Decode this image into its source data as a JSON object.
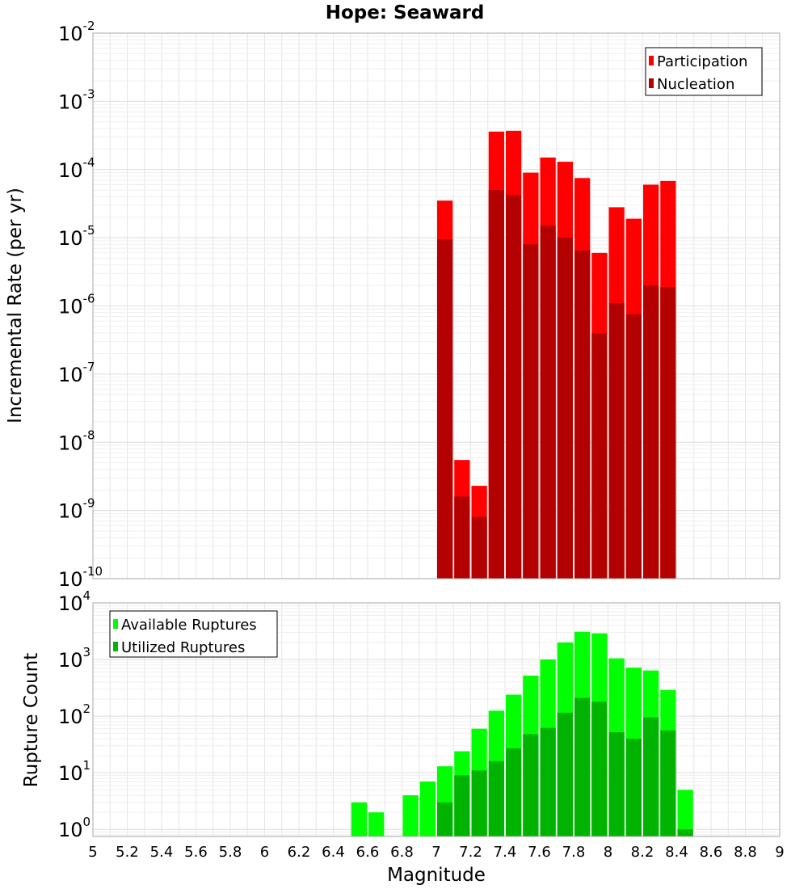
{
  "chart_data": [
    {
      "type": "bar",
      "title": "Hope: Seaward",
      "xlabel": "",
      "ylabel": "Incremental Rate (per yr)",
      "yscale": "log",
      "ylim": [
        1e-10,
        0.01
      ],
      "xlim": [
        5,
        9
      ],
      "y_ticks": [
        "10^-10",
        "10^-9",
        "10^-8",
        "10^-7",
        "10^-6",
        "10^-5",
        "10^-4",
        "10^-3",
        "10^-2"
      ],
      "grid": true,
      "legend_position": "top-right",
      "x": [
        7.05,
        7.15,
        7.25,
        7.35,
        7.45,
        7.55,
        7.65,
        7.75,
        7.85,
        7.95,
        8.05,
        8.15,
        8.25,
        8.35
      ],
      "series": [
        {
          "name": "Participation",
          "color": "#ff0000",
          "values": [
            3.5e-05,
            5.5e-09,
            2.3e-09,
            0.00036,
            0.00037,
            9e-05,
            0.00015,
            0.00013,
            7.5e-05,
            6e-06,
            2.8e-05,
            1.9e-05,
            6e-05,
            6.8e-05
          ]
        },
        {
          "name": "Nucleation",
          "color": "#b30000",
          "values": [
            9.5e-06,
            1.6e-09,
            8e-10,
            5e-05,
            4.2e-05,
            8e-06,
            1.5e-05,
            1e-05,
            6.5e-06,
            4e-07,
            1.1e-06,
            7.5e-07,
            2e-06,
            1.9e-06
          ]
        }
      ]
    },
    {
      "type": "bar",
      "title": "",
      "xlabel": "Magnitude",
      "ylabel": "Rupture Count",
      "yscale": "log",
      "ylim": [
        0.75,
        10000
      ],
      "xlim": [
        5,
        9
      ],
      "y_ticks": [
        "10^0",
        "10^1",
        "10^2",
        "10^3",
        "10^4"
      ],
      "x_ticks": [
        "5",
        "5.2",
        "5.4",
        "5.6",
        "5.8",
        "6",
        "6.2",
        "6.4",
        "6.6",
        "6.8",
        "7",
        "7.2",
        "7.4",
        "7.6",
        "7.8",
        "8",
        "8.2",
        "8.4",
        "8.6",
        "8.8",
        "9"
      ],
      "grid": true,
      "legend_position": "top-left",
      "x": [
        6.55,
        6.65,
        6.75,
        6.85,
        6.95,
        7.05,
        7.15,
        7.25,
        7.35,
        7.45,
        7.55,
        7.65,
        7.75,
        7.85,
        7.95,
        8.05,
        8.15,
        8.25,
        8.35,
        8.45
      ],
      "series": [
        {
          "name": "Available Ruptures",
          "color": "#00ff00",
          "values": [
            3,
            2,
            0,
            4,
            7,
            13,
            24,
            60,
            125,
            240,
            520,
            1000,
            2000,
            3100,
            2900,
            1050,
            720,
            640,
            290,
            5
          ]
        },
        {
          "name": "Utilized Ruptures",
          "color": "#00b300",
          "values": [
            0,
            0,
            0,
            0,
            0,
            3,
            9,
            11,
            16,
            27,
            48,
            62,
            115,
            210,
            180,
            52,
            40,
            95,
            56,
            1
          ]
        }
      ]
    }
  ]
}
